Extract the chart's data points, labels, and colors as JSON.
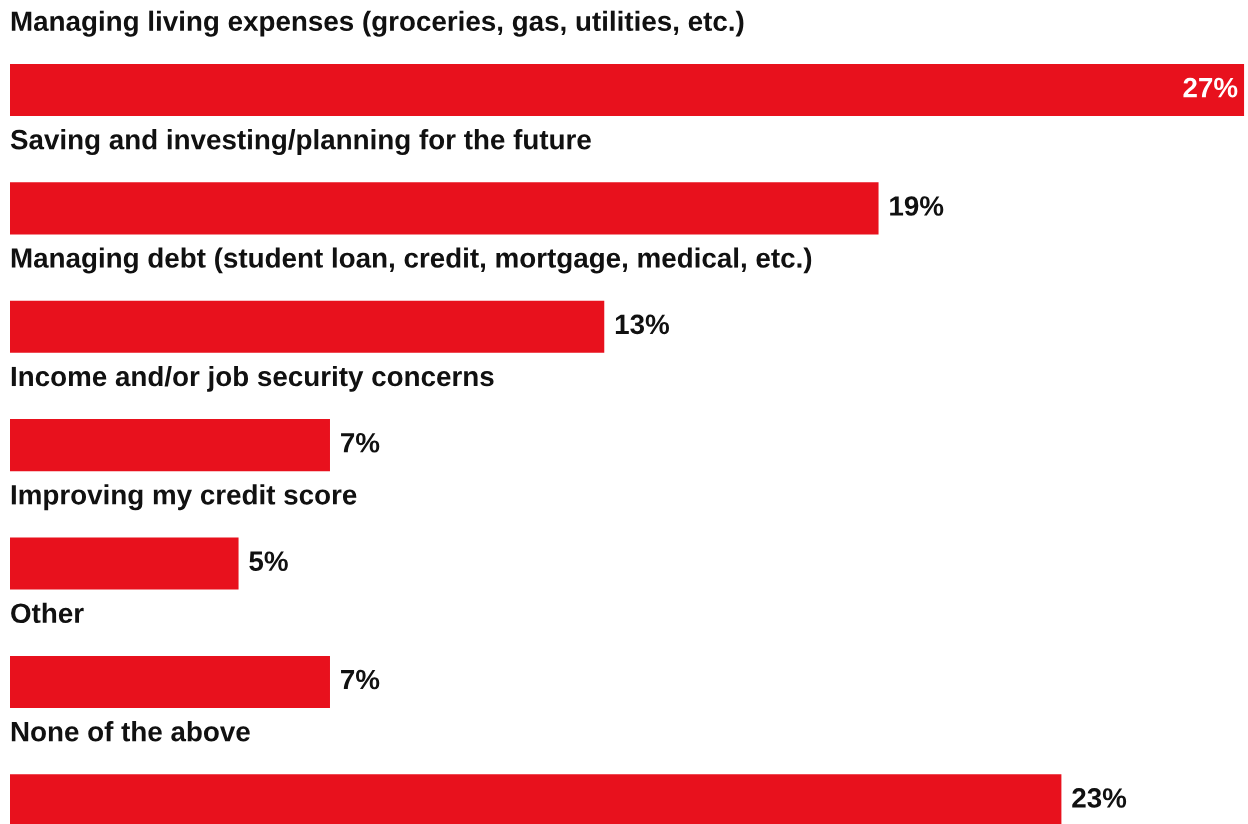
{
  "chart_data": {
    "type": "bar",
    "orientation": "horizontal",
    "categories": [
      "Managing living expenses (groceries, gas, utilities, etc.)",
      "Saving and investing/planning for the future",
      "Managing debt (student loan, credit, mortgage, medical, etc.)",
      "Income and/or job security concerns",
      "Improving my credit score",
      "Other",
      "None of the above"
    ],
    "values": [
      27,
      19,
      13,
      7,
      5,
      7,
      23
    ],
    "color": "#e8111d",
    "value_labels": [
      "27%",
      "19%",
      "13%",
      "7%",
      "5%",
      "7%",
      "23%"
    ]
  }
}
